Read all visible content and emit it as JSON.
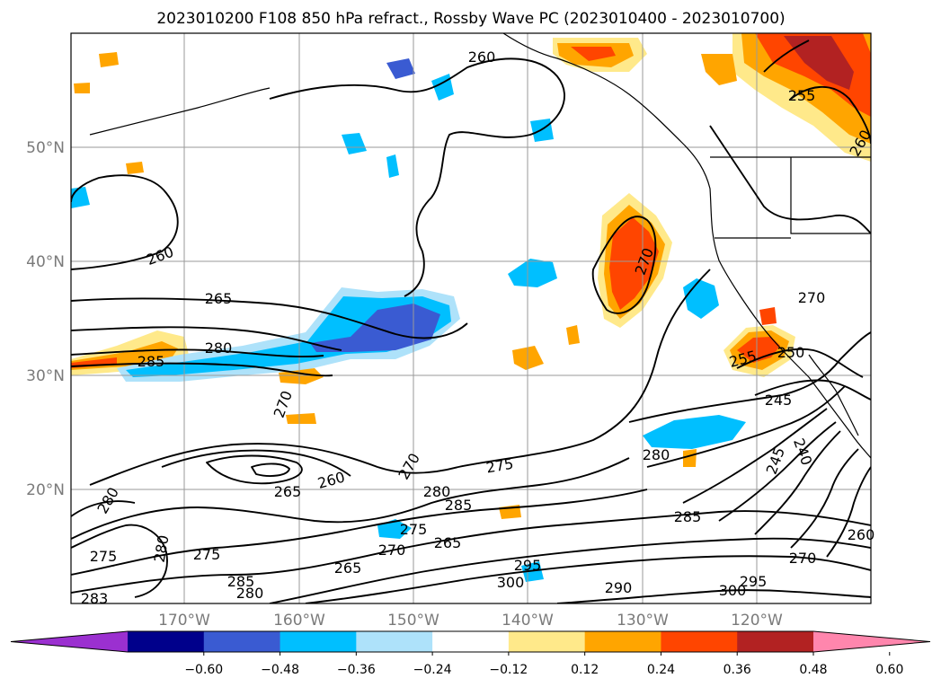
{
  "title": "2023010200 F108 850 hPa refract., Rossby Wave PC (2023010400 - 2023010700)",
  "map": {
    "lat_labels": [
      "50°N",
      "40°N",
      "30°N",
      "20°N"
    ],
    "lon_labels": [
      "170°W",
      "160°W",
      "150°W",
      "140°W",
      "130°W",
      "120°W"
    ],
    "contour_labels": [
      "260",
      "260",
      "265",
      "280",
      "285",
      "270",
      "265",
      "260",
      "270",
      "275",
      "280",
      "285",
      "280",
      "275",
      "280",
      "275",
      "285",
      "280",
      "283",
      "270",
      "265",
      "275",
      "265",
      "295",
      "300",
      "290",
      "285",
      "280",
      "300",
      "295",
      "270",
      "260",
      "240",
      "245",
      "245",
      "255",
      "250",
      "270",
      "255",
      "270",
      "260"
    ]
  },
  "colorbar": {
    "ticks": [
      "−0.60",
      "−0.48",
      "−0.36",
      "−0.24",
      "−0.12",
      "0.12",
      "0.24",
      "0.36",
      "0.48",
      "0.60"
    ],
    "colors": [
      "#9b30d0",
      "#00008b",
      "#3a5bd2",
      "#00bfff",
      "#aee2fa",
      "#ffffff",
      "#ffe98a",
      "#ffa500",
      "#ff4500",
      "#b22222",
      "#ff86ad"
    ]
  }
}
